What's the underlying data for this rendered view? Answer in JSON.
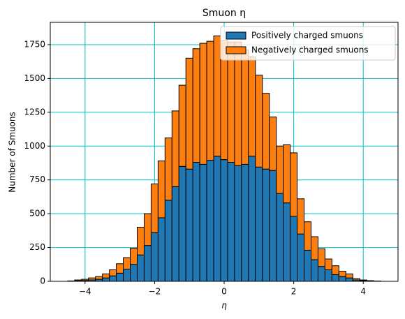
{
  "chart_data": {
    "type": "histogram",
    "title": "Smuon η",
    "xlabel": "η",
    "ylabel": "Number of Smuons",
    "bins": [
      -4.5,
      -4.3,
      -4.1,
      -3.9,
      -3.7,
      -3.5,
      -3.3,
      -3.1,
      -2.9,
      -2.7,
      -2.5,
      -2.3,
      -2.1,
      -1.9,
      -1.7,
      -1.5,
      -1.3,
      -1.1,
      -0.9,
      -0.7,
      -0.5,
      -0.3,
      -0.1,
      0.1,
      0.3,
      0.5,
      0.7,
      0.9,
      1.1,
      1.3,
      1.5,
      1.7,
      1.9,
      2.1,
      2.3,
      2.5,
      2.7,
      2.9,
      3.1,
      3.3,
      3.5,
      3.7,
      3.9,
      4.1,
      4.3,
      4.5
    ],
    "series": [
      {
        "name": "Positively charged smuons",
        "color": "#1f77b4",
        "values": [
          1,
          4,
          6,
          10,
          15,
          25,
          40,
          60,
          90,
          125,
          195,
          265,
          360,
          470,
          600,
          700,
          850,
          830,
          880,
          865,
          895,
          925,
          900,
          880,
          855,
          865,
          925,
          845,
          830,
          820,
          650,
          580,
          480,
          350,
          230,
          160,
          110,
          85,
          50,
          35,
          25,
          10,
          5,
          2,
          1
        ]
      },
      {
        "name": "Negatively charged smuons",
        "color": "#ff7f0e",
        "values": [
          2,
          6,
          9,
          15,
          20,
          30,
          45,
          70,
          85,
          120,
          205,
          235,
          360,
          420,
          460,
          560,
          600,
          820,
          840,
          895,
          880,
          890,
          880,
          890,
          915,
          845,
          735,
          680,
          560,
          395,
          350,
          430,
          470,
          260,
          210,
          170,
          130,
          80,
          65,
          40,
          30,
          10,
          5,
          3,
          1
        ]
      }
    ],
    "xlim": [
      -5,
      5
    ],
    "ylim": [
      0,
      1915
    ],
    "xticks": [
      {
        "value": -4,
        "label": "−4"
      },
      {
        "value": -2,
        "label": "−2"
      },
      0,
      2,
      4
    ],
    "yticks": [
      0,
      250,
      500,
      750,
      1000,
      1250,
      1500,
      1750
    ],
    "grid": true,
    "grid_color": "#00bfbf",
    "edge_color": "#000000",
    "legend": "upper right"
  }
}
